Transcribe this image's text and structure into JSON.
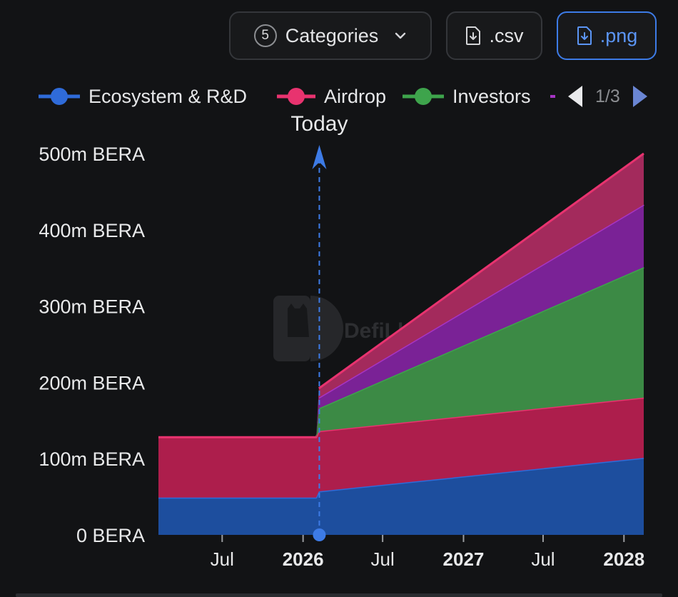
{
  "toolbar": {
    "categories_count": "5",
    "categories_label": "Categories",
    "csv_label": ".csv",
    "png_label": ".png"
  },
  "icons": {
    "categories": "chevron-down-icon",
    "csv": "file-download-icon",
    "png": "file-download-icon",
    "pager_prev": "triangle-left-icon",
    "pager_next": "triangle-right-icon"
  },
  "legend": {
    "items": [
      {
        "label": "Ecosystem & R&D",
        "color": "#2f6bd9"
      },
      {
        "label": "Airdrop",
        "color": "#e8336f"
      },
      {
        "label": "Investors",
        "color": "#3ea44c"
      },
      {
        "label": "",
        "color": "#a634c4"
      }
    ],
    "page": "1/3"
  },
  "chart_data": {
    "type": "area",
    "stacked": true,
    "title": "",
    "xlabel": "",
    "ylabel": "",
    "ylim": [
      0,
      500
    ],
    "y_ticks": [
      0,
      100,
      200,
      300,
      400,
      500
    ],
    "y_tick_labels": [
      "0 BERA",
      "100m BERA",
      "200m BERA",
      "300m BERA",
      "400m BERA",
      "500m BERA"
    ],
    "x_domain": [
      "2025-02-06",
      "2028-02-15"
    ],
    "x_ticks": [
      {
        "date": "2025-07-01",
        "label": "Jul",
        "bold": false
      },
      {
        "date": "2026-01-01",
        "label": "2026",
        "bold": true
      },
      {
        "date": "2026-07-01",
        "label": "Jul",
        "bold": false
      },
      {
        "date": "2027-01-01",
        "label": "2027",
        "bold": true
      },
      {
        "date": "2027-07-01",
        "label": "Jul",
        "bold": false
      },
      {
        "date": "2028-01-01",
        "label": "2028",
        "bold": true
      }
    ],
    "today": {
      "date": "2026-02-07",
      "label": "Today"
    },
    "unit": "m BERA",
    "watermark": "DefiLlama",
    "series": [
      {
        "name": "Ecosystem & R&D",
        "color": "#2f6bd9",
        "fill": "#1d4e9e",
        "points": [
          [
            "2025-02-06",
            49
          ],
          [
            "2026-01-31",
            49
          ],
          [
            "2026-02-06",
            57
          ],
          [
            "2028-02-15",
            101
          ]
        ]
      },
      {
        "name": "Airdrop",
        "color": "#e8336f",
        "fill": "#ad1e4c",
        "points": [
          [
            "2025-02-06",
            79
          ],
          [
            "2026-01-31",
            79
          ],
          [
            "2026-02-06",
            79
          ],
          [
            "2028-02-15",
            79
          ]
        ]
      },
      {
        "name": "Investors",
        "color": "#3ea44c",
        "fill": "#3c8a45",
        "points": [
          [
            "2025-02-06",
            0
          ],
          [
            "2026-01-31",
            0
          ],
          [
            "2026-02-06",
            30
          ],
          [
            "2028-02-15",
            171
          ]
        ]
      },
      {
        "color": "#a634c4",
        "fill": "#7a2296",
        "points": [
          [
            "2025-02-06",
            0
          ],
          [
            "2026-01-31",
            0
          ],
          [
            "2026-02-06",
            14
          ],
          [
            "2028-02-15",
            82
          ]
        ]
      },
      {
        "color": "#e8336f",
        "fill": "#a32a5c",
        "points": [
          [
            "2025-02-06",
            0
          ],
          [
            "2026-01-31",
            0
          ],
          [
            "2026-02-06",
            12
          ],
          [
            "2028-02-15",
            67
          ]
        ]
      }
    ]
  }
}
